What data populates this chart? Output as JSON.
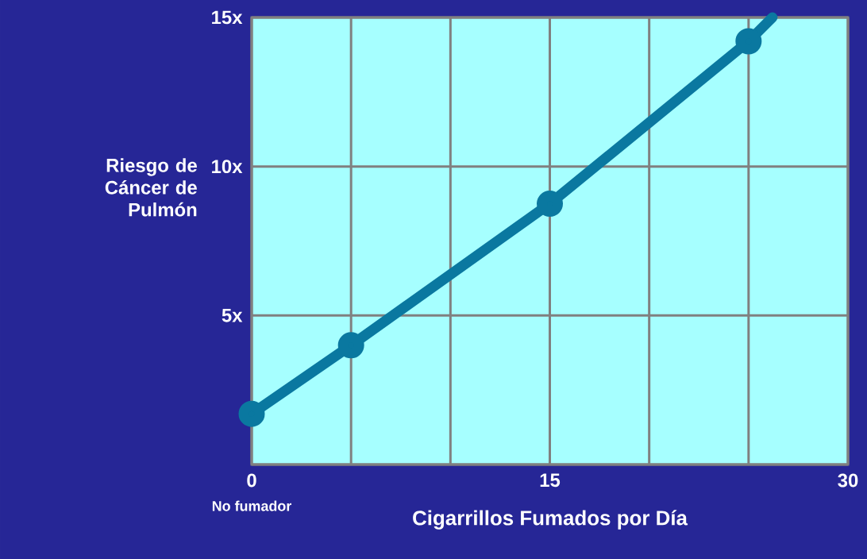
{
  "chart_data": {
    "type": "line",
    "xlabel": "Cigarrillos Fumados por Día",
    "ylabel": "Riesgo de Cáncer de Pulmón",
    "x": [
      0,
      5,
      15,
      25,
      26.2
    ],
    "series": [
      {
        "color": "#0a78a0",
        "values": [
          1.7,
          4,
          8.75,
          14.2,
          15
        ]
      }
    ],
    "xlim": [
      0,
      30
    ],
    "ylim": [
      0,
      15
    ],
    "xticks": [
      0,
      {
        "value": 5,
        "label": null
      },
      {
        "value": 10,
        "label": null
      },
      15,
      {
        "value": 20,
        "label": null
      },
      {
        "value": 25,
        "label": null
      },
      30
    ],
    "yticks": [
      {
        "value": 0,
        "label": null
      },
      {
        "value": 5,
        "label": "5x"
      },
      {
        "value": 10,
        "label": "10x"
      },
      {
        "value": 15,
        "label": "15x"
      }
    ],
    "grid": true,
    "marker": "circle",
    "line_style": "solid",
    "annotations": [
      "No fumador"
    ]
  }
}
